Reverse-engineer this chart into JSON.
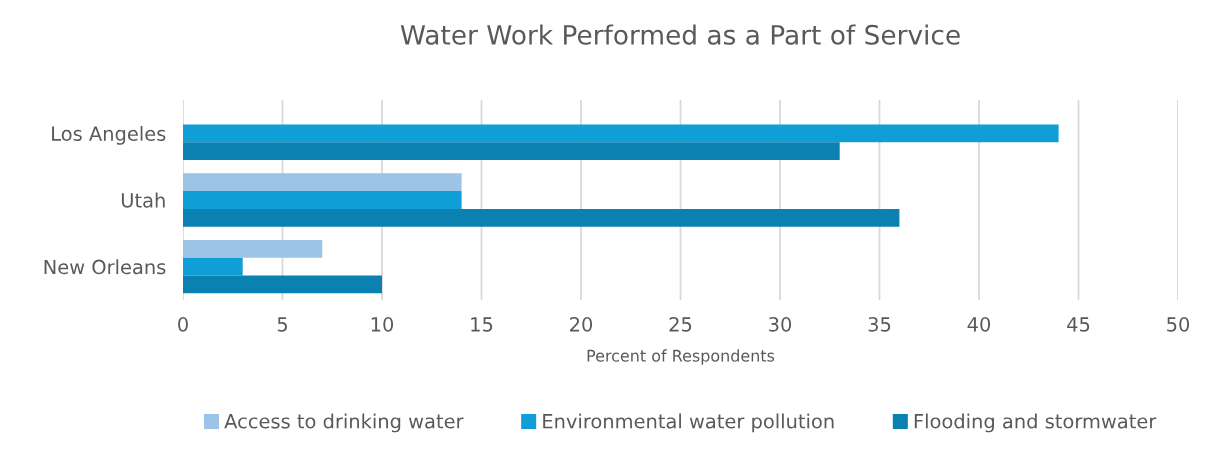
{
  "chart_data": {
    "type": "bar",
    "orientation": "horizontal",
    "title": "Water Work Performed as a Part of Service",
    "xlabel": "Percent of Respondents",
    "categories": [
      "Los Angeles",
      "Utah",
      "New Orleans"
    ],
    "series": [
      {
        "name": "Access to drinking water",
        "color": "#9dc3e6",
        "values": [
          null,
          14,
          7
        ]
      },
      {
        "name": "Environmental water pollution",
        "color": "#0f9ed5",
        "values": [
          44,
          14,
          3
        ]
      },
      {
        "name": "Flooding and stormwater",
        "color": "#0a81b0",
        "values": [
          33,
          36,
          10
        ]
      }
    ],
    "xlim": [
      0,
      50
    ],
    "xticks": [
      0,
      5,
      10,
      15,
      20,
      25,
      30,
      35,
      40,
      45,
      50
    ],
    "grid": "x",
    "legend": "bottom"
  }
}
